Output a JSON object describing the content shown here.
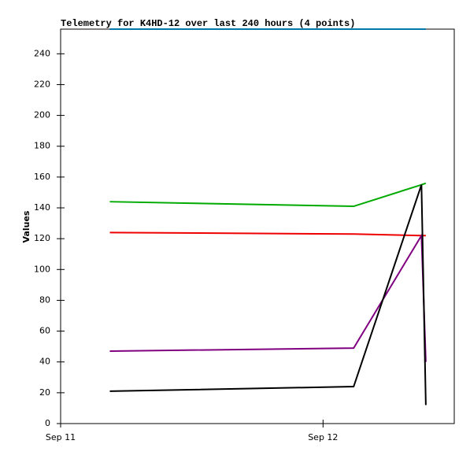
{
  "chart_data": {
    "type": "line",
    "title": "Telemetry for K4HD-12 over last 240 hours (4 points)",
    "y_label": "Values",
    "x": [
      4.5,
      26.8,
      33.0,
      33.4
    ],
    "xlim": [
      0,
      36
    ],
    "xticks": [
      {
        "value": 0,
        "label": "Sep 11"
      },
      {
        "value": 24,
        "label": "Sep 12"
      }
    ],
    "ylim": [
      0,
      256
    ],
    "yticks": [
      0,
      20,
      40,
      60,
      80,
      100,
      120,
      140,
      160,
      180,
      200,
      220,
      240
    ],
    "grid": false,
    "series": [
      {
        "color": "#0077aa",
        "values": [
          256,
          256,
          256,
          256
        ]
      },
      {
        "color": "#00aa00",
        "values": [
          144,
          141,
          155,
          156
        ]
      },
      {
        "color": "#ee0000",
        "values": [
          124,
          123,
          122,
          122
        ]
      },
      {
        "color": "#800080",
        "values": [
          47,
          49,
          122,
          40
        ]
      },
      {
        "color": "#000000",
        "values": [
          21,
          24,
          155,
          12
        ]
      }
    ]
  }
}
